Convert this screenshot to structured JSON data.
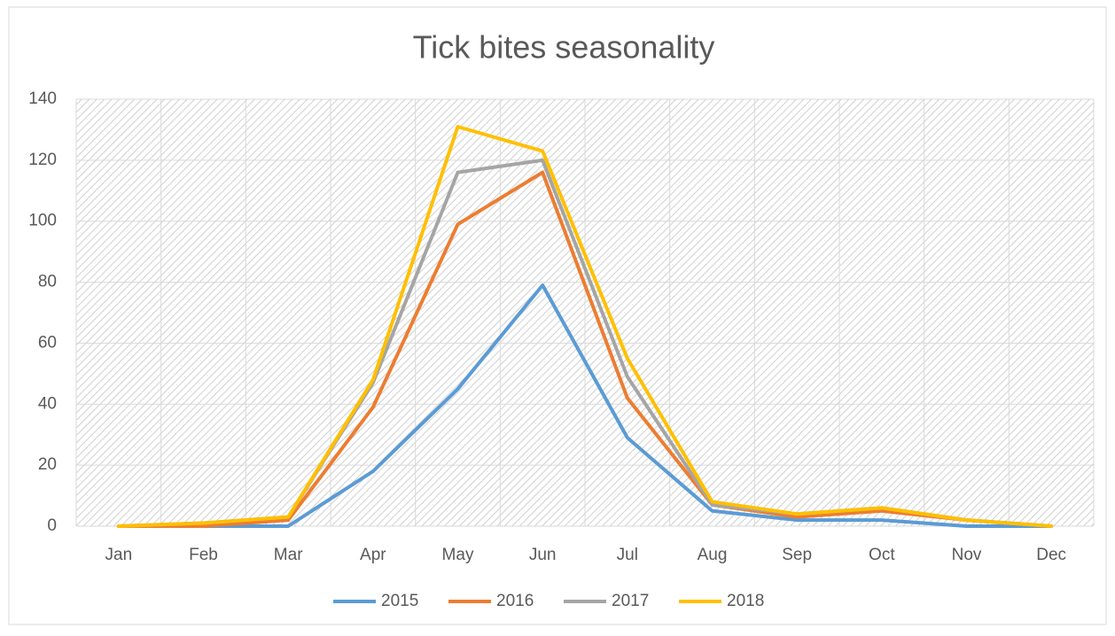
{
  "chart_data": {
    "type": "line",
    "title": "Tick bites seasonality",
    "categories": [
      "Jan",
      "Feb",
      "Mar",
      "Apr",
      "May",
      "Jun",
      "Jul",
      "Aug",
      "Sep",
      "Oct",
      "Nov",
      "Dec"
    ],
    "series": [
      {
        "name": "2015",
        "color": "#5b9bd5",
        "values": [
          0,
          0,
          0,
          18,
          45,
          79,
          29,
          5,
          2,
          2,
          0,
          0
        ]
      },
      {
        "name": "2016",
        "color": "#ed7d31",
        "values": [
          0,
          0,
          2,
          39,
          99,
          116,
          42,
          7,
          3,
          5,
          2,
          0
        ]
      },
      {
        "name": "2017",
        "color": "#a5a5a5",
        "values": [
          0,
          1,
          3,
          47,
          116,
          120,
          49,
          7,
          4,
          6,
          2,
          0
        ]
      },
      {
        "name": "2018",
        "color": "#ffc000",
        "values": [
          0,
          1,
          3,
          48,
          131,
          123,
          55,
          8,
          4,
          6,
          2,
          0
        ]
      }
    ],
    "ylim": [
      0,
      140
    ],
    "yticks": [
      0,
      20,
      40,
      60,
      80,
      100,
      120,
      140
    ],
    "grid": true,
    "legend": "bottom"
  }
}
